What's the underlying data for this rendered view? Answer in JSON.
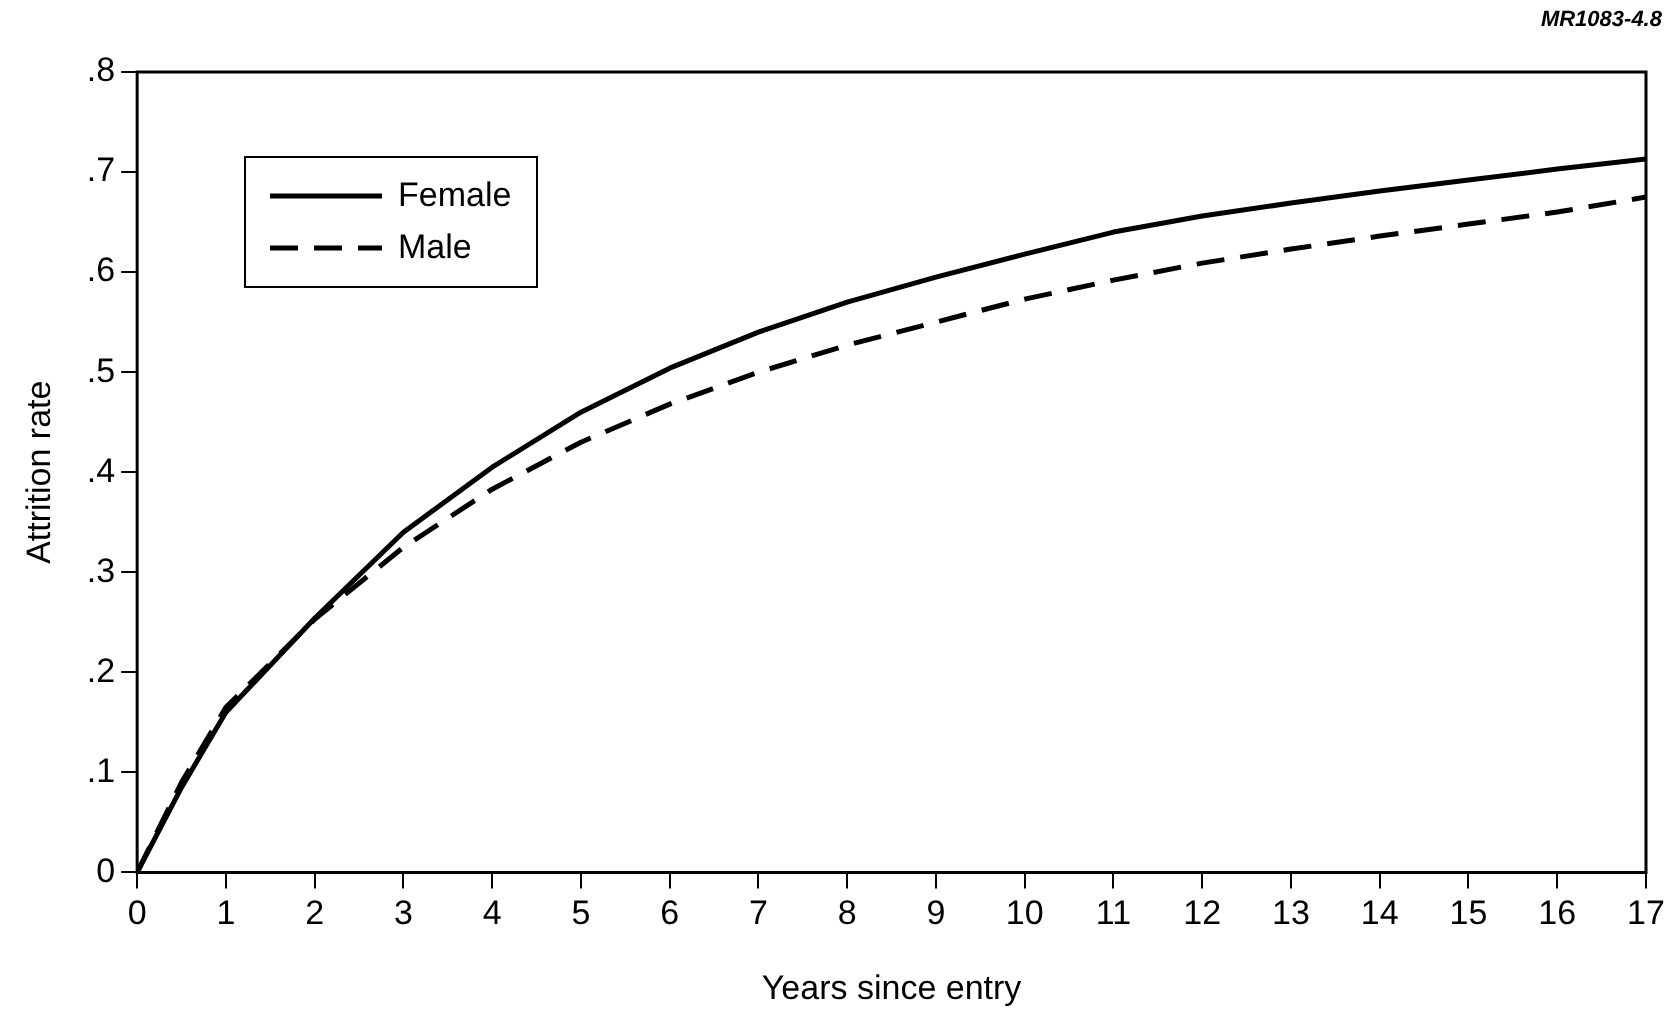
{
  "chart_data": {
    "type": "line",
    "xlabel": "Years since entry",
    "ylabel": "Attrition rate",
    "annotations": [
      "MR1083-4.8"
    ],
    "x": [
      0,
      0.5,
      1,
      2,
      3,
      4,
      5,
      6,
      7,
      8,
      9,
      10,
      11,
      12,
      13,
      14,
      15,
      16,
      17
    ],
    "series": [
      {
        "name": "Female",
        "color": "#000000",
        "line_style": "solid",
        "values": [
          0,
          0.085,
          0.16,
          0.254,
          0.34,
          0.405,
          0.46,
          0.504,
          0.54,
          0.57,
          0.595,
          0.618,
          0.64,
          0.656,
          0.669,
          0.681,
          0.692,
          0.703,
          0.713
        ]
      },
      {
        "name": "Male",
        "color": "#000000",
        "line_style": "dashed",
        "values": [
          0,
          0.09,
          0.165,
          0.253,
          0.325,
          0.383,
          0.43,
          0.468,
          0.5,
          0.527,
          0.55,
          0.573,
          0.592,
          0.609,
          0.623,
          0.636,
          0.648,
          0.66,
          0.675
        ]
      }
    ],
    "xlim": [
      0,
      17
    ],
    "xticks": [
      0,
      1,
      2,
      3,
      4,
      5,
      6,
      7,
      8,
      9,
      10,
      11,
      12,
      13,
      14,
      15,
      16,
      17
    ],
    "ylim": [
      0,
      0.8
    ],
    "yticks": [
      0,
      {
        "value": 0.1,
        "label": ".1"
      },
      {
        "value": 0.2,
        "label": ".2"
      },
      {
        "value": 0.3,
        "label": ".3"
      },
      {
        "value": 0.4,
        "label": ".4"
      },
      {
        "value": 0.5,
        "label": ".5"
      },
      {
        "value": 0.6,
        "label": ".6"
      },
      {
        "value": 0.7,
        "label": ".7"
      },
      {
        "value": 0.8,
        "label": ".8"
      }
    ],
    "legend": "top left",
    "marker": "none"
  }
}
